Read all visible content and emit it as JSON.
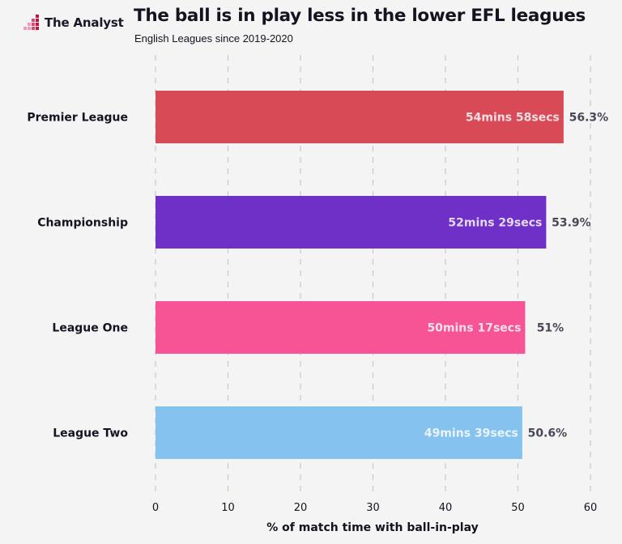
{
  "brand": {
    "logo_text": "The Analyst",
    "logo_colors": [
      "#c4153a",
      "#e0457b",
      "#f59ab5"
    ]
  },
  "header": {
    "title": "The ball is in play less in the lower EFL leagues",
    "subtitle": "English Leagues since 2019-2020"
  },
  "chart_data": {
    "type": "bar",
    "orientation": "horizontal",
    "title": "The ball is in play less in the lower EFL leagues",
    "subtitle": "English Leagues since 2019-2020",
    "xlabel": "% of match time with ball-in-play",
    "ylabel": "",
    "xlim": [
      0,
      60
    ],
    "xticks": [
      0,
      10,
      20,
      30,
      40,
      50,
      60
    ],
    "grid": "vertical dashed",
    "categories": [
      "Premier League",
      "Championship",
      "League One",
      "League Two"
    ],
    "values": [
      56.3,
      53.9,
      51,
      50.6
    ],
    "value_labels": [
      "56.3%",
      "53.9%",
      "51%",
      "50.6%"
    ],
    "time_labels": [
      "54mins 58secs",
      "52mins 29secs",
      "50mins 17secs",
      "49mins 39secs"
    ],
    "colors": [
      "#d94a57",
      "#6e30c6",
      "#f75495",
      "#85c2ef"
    ]
  }
}
